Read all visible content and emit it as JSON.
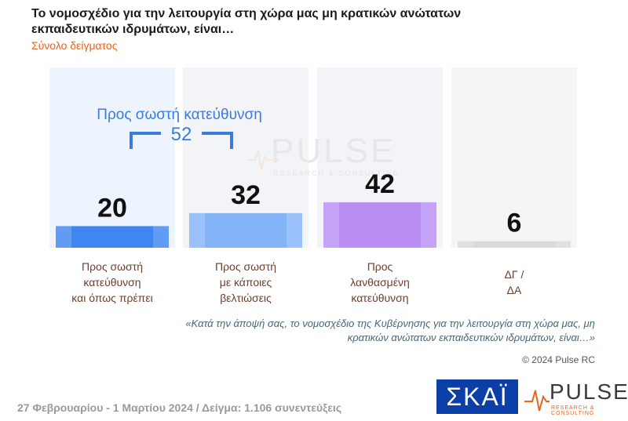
{
  "title": "Το νομοσχέδιο για την λειτουργία στη χώρα μας μη κρατικών ανώτατων εκπαιδευτικών ιδρυμάτων, είναι…",
  "subtitle": "Σύνολο δείγματος",
  "group": {
    "label": "Προς σωστή κατεύθυνση",
    "value": "52"
  },
  "watermark": {
    "word": "PULSE",
    "sub": "RESEARCH & CONSULTING"
  },
  "question": "«Κατά την άποψή σας, το νομοσχέδιο της Κυβέρνησης για την λειτουργία στη χώρα μας, μη κρατικών ανώτατων εκπαιδευτικών ιδρυμάτων, είναι…»",
  "copyright": "© 2024 Pulse RC",
  "footer": "27 Φεβρουαρίου - 1 Μαρτίου 2024  /  Δείγμα:  1.106 συνεντεύξεις",
  "logos": {
    "skai": "ΣΚΑΪ",
    "pulse": "PULSE",
    "pulse_sub": "RESEARCH & CONSULTING"
  },
  "colors": {
    "accent": "#3a7be0",
    "subtitle": "#e8641f"
  },
  "chart_data": {
    "type": "bar",
    "categories": [
      "Προς σωστή κατεύθυνση και όπως πρέπει",
      "Προς σωστή με κάποιες βελτιώσεις",
      "Προς λανθασμένη κατεύθυνση",
      "ΔΓ / ΔΑ"
    ],
    "category_lines": [
      [
        "Προς σωστή",
        "κατεύθυνση",
        "και όπως πρέπει"
      ],
      [
        "Προς σωστή",
        "με κάποιες",
        "βελτιώσεις"
      ],
      [
        "Προς",
        "λανθασμένη",
        "κατεύθυνση"
      ],
      [
        "ΔΓ /",
        "ΔΑ"
      ]
    ],
    "values": [
      20,
      32,
      42,
      6
    ],
    "value_labels": [
      "20",
      "32",
      "42",
      "6"
    ],
    "colors": [
      "#3f86f1",
      "#84b4f8",
      "#b98ff4",
      "#dadada"
    ],
    "ylim": [
      0,
      100
    ]
  }
}
